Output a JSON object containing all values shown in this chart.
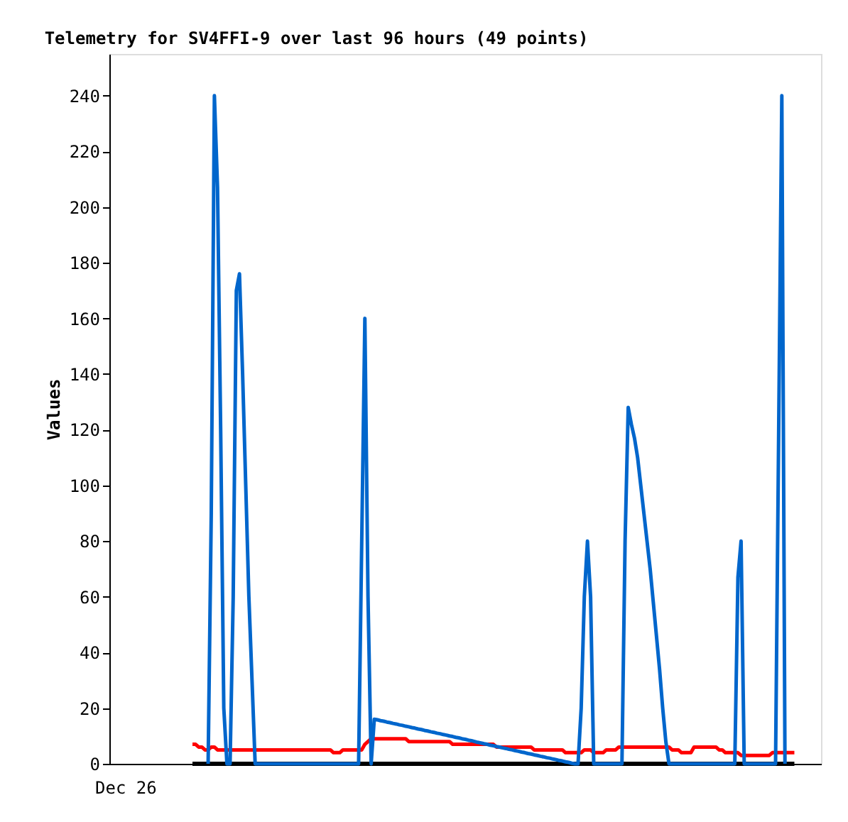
{
  "chart_data": {
    "type": "line",
    "title": "Telemetry for SV4FFI-9 over last 96 hours (49 points)",
    "ylabel": "Values",
    "categories": [
      null,
      null,
      null,
      null,
      null,
      null,
      null,
      null,
      null,
      null,
      null,
      null,
      null,
      null,
      null,
      null,
      null,
      null,
      null,
      null,
      null,
      null,
      null,
      null,
      null,
      null,
      null,
      null,
      null,
      null,
      null,
      null,
      null,
      null,
      null,
      null,
      null,
      null,
      null,
      null,
      null,
      null,
      null,
      null,
      null,
      null,
      null,
      null,
      null,
      null,
      null,
      null,
      null,
      null,
      null,
      null,
      null,
      null,
      null,
      null,
      null,
      null,
      null,
      null,
      null,
      null,
      null,
      null,
      null,
      null,
      null,
      null,
      null,
      null,
      null,
      null,
      null,
      null,
      null,
      null,
      null,
      null,
      null,
      null,
      null,
      null,
      null,
      null,
      null,
      null,
      null,
      null,
      null,
      null,
      null,
      null,
      null,
      null,
      null,
      null,
      null,
      null,
      null,
      null,
      null,
      null,
      null,
      null,
      null,
      null,
      null,
      null,
      null,
      null,
      null,
      null,
      null,
      null,
      null,
      null,
      null,
      null,
      null,
      null,
      null,
      null,
      null,
      null,
      null,
      null,
      null,
      null,
      null,
      null,
      null,
      null,
      null,
      null,
      null,
      null,
      null,
      null,
      null,
      null,
      null,
      null,
      null,
      null,
      null,
      null,
      null,
      null,
      null,
      null,
      null,
      null,
      null,
      null,
      null,
      null,
      null,
      null,
      null,
      null,
      null,
      null,
      null,
      null,
      null,
      null,
      null,
      null,
      null,
      null,
      null,
      null,
      null,
      null,
      null,
      null,
      null,
      null,
      null,
      null,
      null,
      null,
      null,
      null,
      null,
      null,
      null,
      null,
      null,
      null,
      null,
      null,
      null,
      null,
      null,
      null,
      null,
      null,
      null,
      null,
      null,
      null,
      null,
      null,
      null,
      null,
      null,
      null,
      null,
      null,
      null,
      null,
      null,
      null,
      null,
      null,
      null,
      null,
      null,
      null,
      null,
      null,
      null
    ],
    "annotations": [
      "Dec 26"
    ],
    "ylim": [
      0,
      255
    ],
    "yticks": [
      0,
      20,
      40,
      60,
      80,
      100,
      120,
      140,
      160,
      180,
      200,
      220,
      240
    ],
    "grid": false,
    "legend": false,
    "marker": "none",
    "line_style": "solid",
    "series": [
      {
        "color": "#000000",
        "values": [
          null,
          null,
          null,
          null,
          null,
          null,
          null,
          null,
          null,
          null,
          null,
          null,
          null,
          null,
          null,
          null,
          null,
          null,
          null,
          null,
          null,
          null,
          null,
          null,
          null,
          null,
          0,
          0,
          0,
          0,
          0,
          0,
          0,
          0,
          0,
          0,
          0,
          0,
          0,
          0,
          0,
          0,
          0,
          0,
          0,
          0,
          0,
          0,
          0,
          0,
          0,
          0,
          0,
          0,
          0,
          0,
          0,
          0,
          0,
          0,
          0,
          0,
          0,
          0,
          0,
          0,
          0,
          0,
          0,
          0,
          0,
          0,
          0,
          0,
          0,
          0,
          0,
          0,
          0,
          0,
          0,
          0,
          0,
          0,
          0,
          0,
          0,
          0,
          0,
          0,
          0,
          0,
          0,
          0,
          0,
          0,
          0,
          0,
          0,
          0,
          0,
          0,
          0,
          0,
          0,
          0,
          0,
          0,
          0,
          0,
          0,
          0,
          0,
          0,
          0,
          0,
          0,
          0,
          0,
          0,
          0,
          0,
          0,
          0,
          0,
          0,
          0,
          0,
          0,
          0,
          0,
          0,
          0,
          0,
          0,
          0,
          0,
          0,
          0,
          0,
          0,
          0,
          0,
          0,
          0,
          0,
          0,
          0,
          0,
          0,
          0,
          0,
          0,
          0,
          0,
          0,
          0,
          0,
          0,
          0,
          0,
          0,
          0,
          0,
          0,
          0,
          0,
          0,
          0,
          0,
          0,
          0,
          0,
          0,
          0,
          0,
          0,
          0,
          0,
          0,
          0,
          0,
          0,
          0,
          0,
          0,
          0,
          0,
          0,
          0,
          0,
          0,
          0,
          0,
          0,
          0,
          0,
          0,
          0,
          0,
          0,
          0,
          0,
          0,
          0,
          0,
          0,
          0,
          0,
          0,
          0,
          0,
          0,
          0,
          0,
          0,
          0,
          0,
          0,
          null,
          null,
          null,
          null,
          null,
          null,
          null,
          null
        ]
      },
      {
        "color": "#ff0000",
        "values": [
          null,
          null,
          null,
          null,
          null,
          null,
          null,
          null,
          null,
          null,
          null,
          null,
          null,
          null,
          null,
          null,
          null,
          null,
          null,
          null,
          null,
          null,
          null,
          null,
          null,
          null,
          7,
          7,
          6,
          6,
          5,
          5,
          6,
          6,
          5,
          5,
          5,
          5,
          5,
          5,
          5,
          5,
          5,
          5,
          5,
          5,
          5,
          5,
          5,
          5,
          5,
          5,
          5,
          5,
          5,
          5,
          5,
          5,
          5,
          5,
          5,
          5,
          5,
          5,
          5,
          5,
          5,
          5,
          5,
          5,
          5,
          4,
          4,
          4,
          5,
          5,
          5,
          5,
          5,
          5,
          5,
          7,
          8,
          9,
          9,
          9,
          9,
          9,
          9,
          9,
          9,
          9,
          9,
          9,
          9,
          8,
          8,
          8,
          8,
          8,
          8,
          8,
          8,
          8,
          8,
          8,
          8,
          8,
          8,
          7,
          7,
          7,
          7,
          7,
          7,
          7,
          7,
          7,
          7,
          7,
          7,
          7,
          7,
          6,
          6,
          6,
          6,
          6,
          6,
          6,
          6,
          6,
          6,
          6,
          6,
          5,
          5,
          5,
          5,
          5,
          5,
          5,
          5,
          5,
          5,
          4,
          4,
          4,
          4,
          4,
          4,
          5,
          5,
          5,
          4,
          4,
          4,
          4,
          5,
          5,
          5,
          5,
          6,
          6,
          6,
          6,
          6,
          6,
          6,
          6,
          6,
          6,
          6,
          6,
          6,
          6,
          6,
          6,
          6,
          5,
          5,
          5,
          4,
          4,
          4,
          4,
          6,
          6,
          6,
          6,
          6,
          6,
          6,
          6,
          5,
          5,
          4,
          4,
          4,
          4,
          4,
          3,
          3,
          3,
          3,
          3,
          3,
          3,
          3,
          3,
          3,
          4,
          4,
          4,
          4,
          4,
          4,
          4,
          4,
          null,
          null,
          null,
          null,
          null,
          null,
          null,
          null
        ]
      },
      {
        "color": "#0066cc",
        "values": [
          null,
          null,
          null,
          null,
          null,
          null,
          null,
          null,
          null,
          null,
          null,
          null,
          null,
          null,
          null,
          null,
          null,
          null,
          null,
          null,
          null,
          null,
          null,
          null,
          null,
          null,
          null,
          null,
          null,
          null,
          null,
          0,
          90,
          240,
          207,
          120,
          20,
          0,
          0,
          60,
          170,
          176,
          140,
          100,
          60,
          30,
          0,
          0,
          0,
          0,
          0,
          0,
          0,
          0,
          0,
          0,
          0,
          0,
          0,
          0,
          0,
          0,
          0,
          0,
          0,
          0,
          0,
          0,
          0,
          0,
          0,
          0,
          0,
          0,
          0,
          0,
          0,
          0,
          0,
          0,
          80,
          160,
          60,
          0,
          16,
          15.8,
          15.5,
          15.3,
          15,
          14.8,
          14.5,
          14.3,
          14,
          13.8,
          13.5,
          13.3,
          13,
          12.8,
          12.5,
          12.3,
          12,
          11.8,
          11.5,
          11.3,
          11,
          10.8,
          10.5,
          10.3,
          10,
          9.8,
          9.5,
          9.3,
          9,
          8.8,
          8.5,
          8.3,
          8,
          7.7,
          7.5,
          7.2,
          7,
          6.7,
          6.5,
          6.2,
          6,
          5.7,
          5.5,
          5.2,
          5,
          4.7,
          4.5,
          4.2,
          4,
          3.7,
          3.5,
          3.2,
          3,
          2.7,
          2.5,
          2.2,
          2,
          1.7,
          1.5,
          1.2,
          1,
          0.7,
          0.5,
          0.2,
          0,
          0,
          20,
          60,
          80,
          60,
          0,
          0,
          0,
          0,
          0,
          0,
          0,
          0,
          0,
          0,
          80,
          128,
          122,
          117,
          110,
          100,
          90,
          80,
          70,
          58,
          46,
          34,
          20,
          8,
          0,
          0,
          0,
          0,
          0,
          0,
          0,
          0,
          0,
          0,
          0,
          0,
          0,
          0,
          0,
          0,
          0,
          0,
          0,
          0,
          0,
          0,
          67,
          80,
          0,
          0,
          0,
          0,
          0,
          0,
          0,
          0,
          0,
          0,
          0,
          120,
          240,
          0,
          null,
          null,
          null,
          null,
          null,
          null,
          null,
          null,
          null,
          null,
          null
        ]
      }
    ]
  }
}
